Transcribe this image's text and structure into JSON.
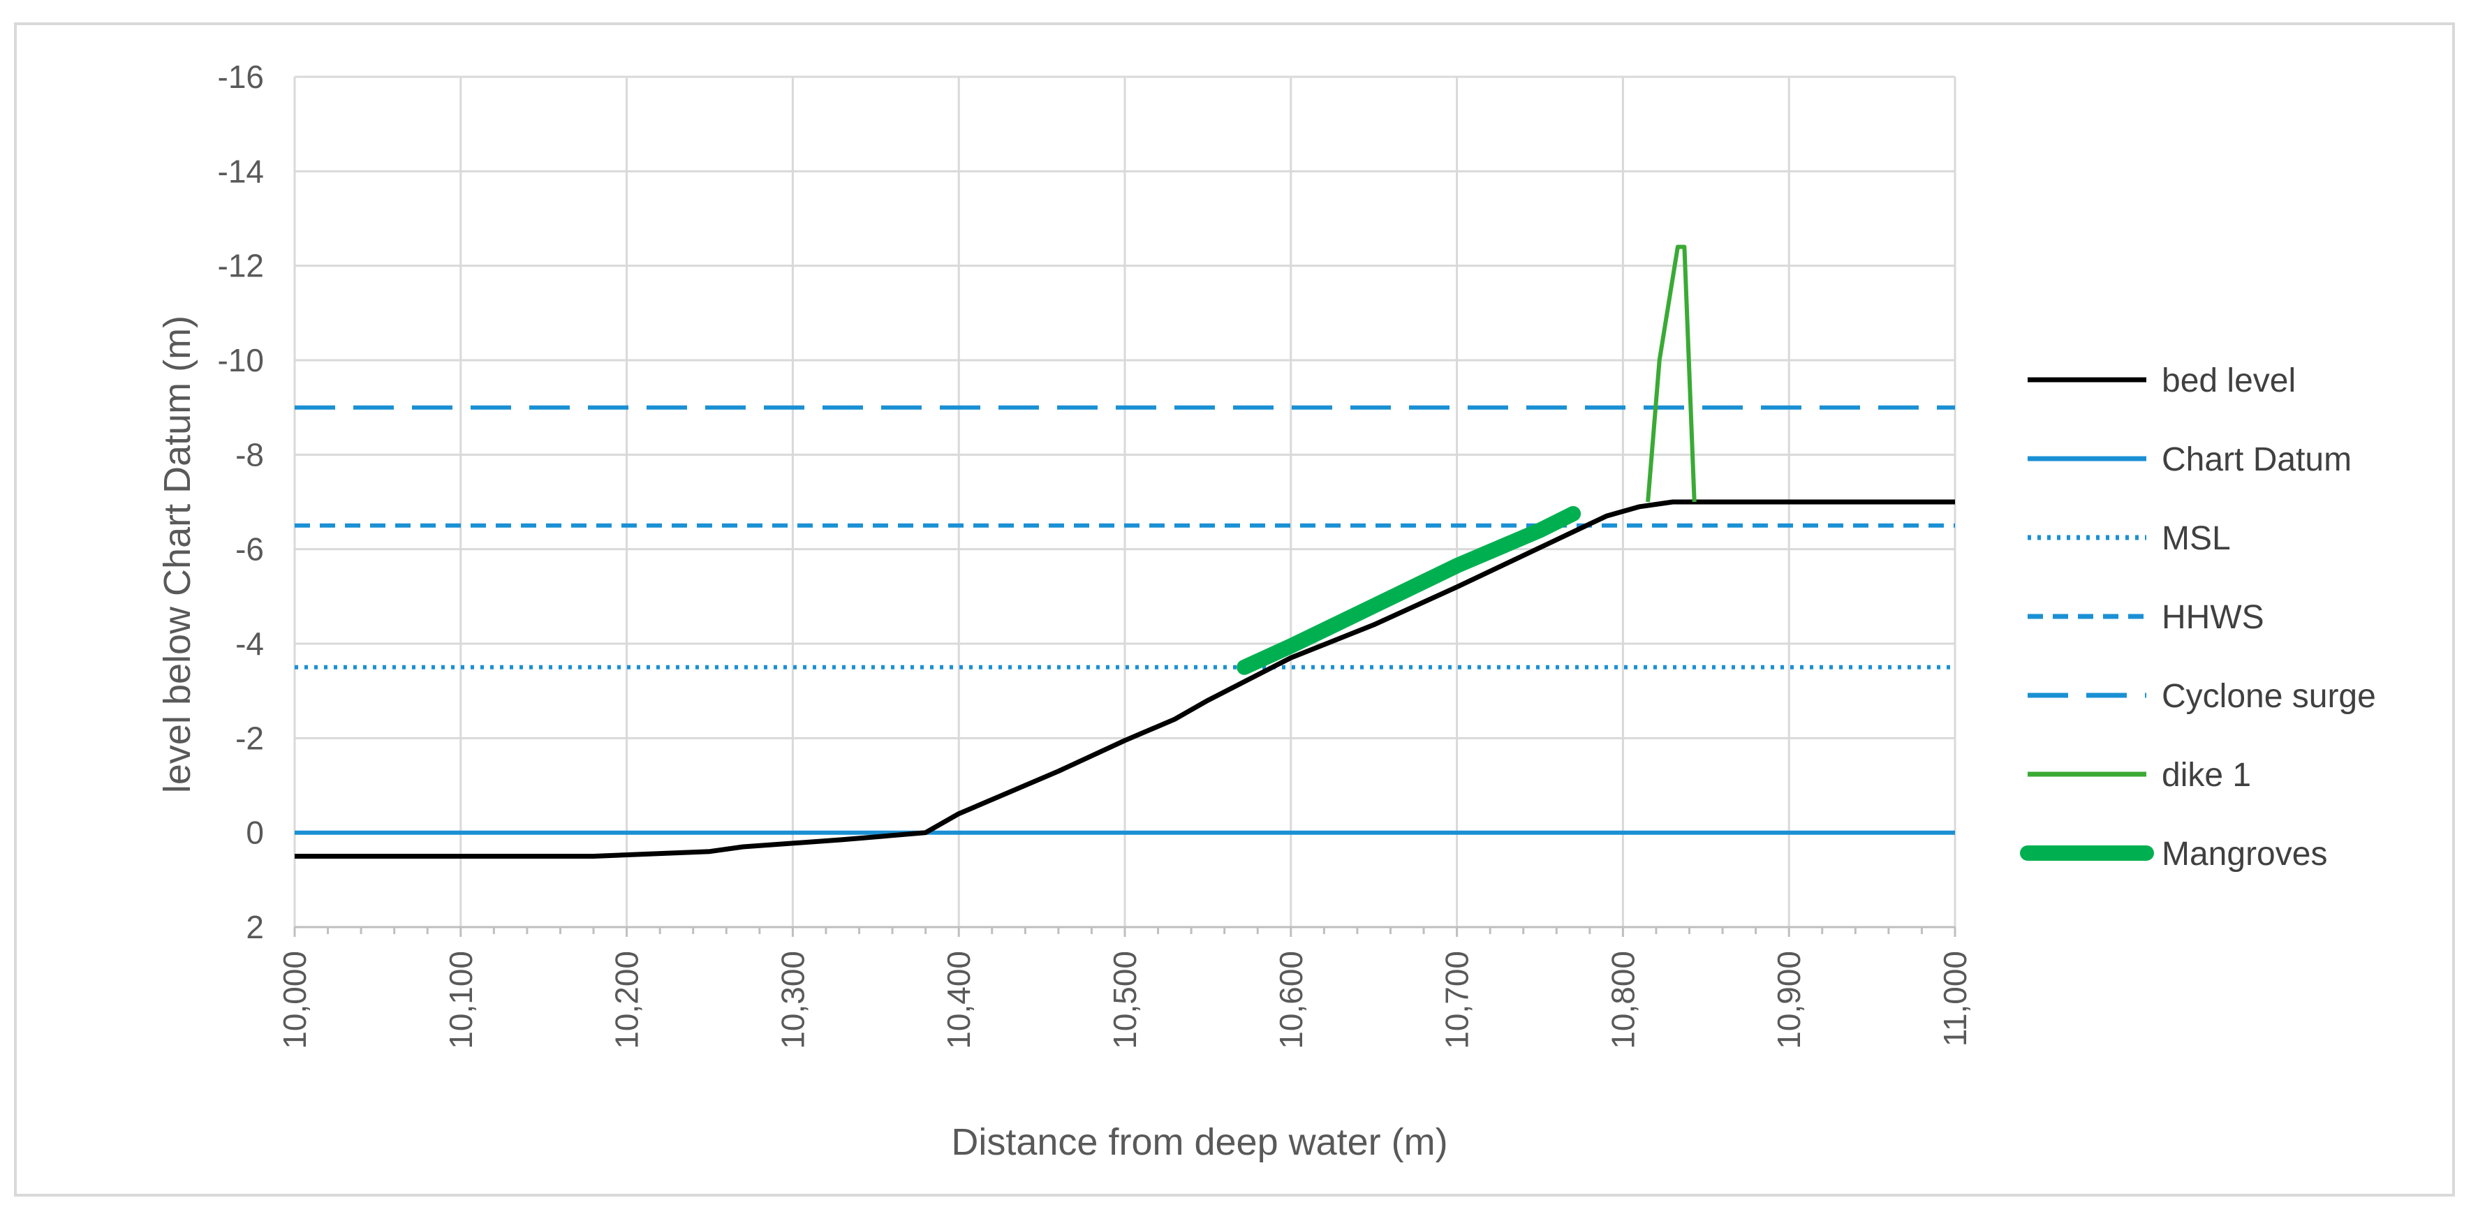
{
  "chart_data": {
    "type": "line",
    "title": "",
    "xlabel": "Distance from deep water (m)",
    "ylabel": "level below Chart Datum (m)",
    "xlim": [
      10000,
      11000
    ],
    "ylim": [
      2,
      -16
    ],
    "y_reversed": true,
    "grid": true,
    "legend_position": "right",
    "x_ticks": [
      {
        "value": 10000,
        "label": "10,000"
      },
      {
        "value": 10100,
        "label": "10,100"
      },
      {
        "value": 10200,
        "label": "10,200"
      },
      {
        "value": 10300,
        "label": "10,300"
      },
      {
        "value": 10400,
        "label": "10,400"
      },
      {
        "value": 10500,
        "label": "10,500"
      },
      {
        "value": 10600,
        "label": "10,600"
      },
      {
        "value": 10700,
        "label": "10,700"
      },
      {
        "value": 10800,
        "label": "10,800"
      },
      {
        "value": 10900,
        "label": "10,900"
      },
      {
        "value": 11000,
        "label": "11,000"
      }
    ],
    "y_ticks": [
      {
        "value": -16,
        "label": "-16"
      },
      {
        "value": -14,
        "label": "-14"
      },
      {
        "value": -12,
        "label": "-12"
      },
      {
        "value": -10,
        "label": "-10"
      },
      {
        "value": -8,
        "label": "-8"
      },
      {
        "value": -6,
        "label": "-6"
      },
      {
        "value": -4,
        "label": "-4"
      },
      {
        "value": -2,
        "label": "-2"
      },
      {
        "value": 0,
        "label": "0"
      },
      {
        "value": 2,
        "label": "2"
      }
    ],
    "series": [
      {
        "name": "bed level",
        "color": "#000000",
        "style": "solid",
        "width": "normal",
        "x": [
          10000,
          10180,
          10250,
          10270,
          10330,
          10380,
          10400,
          10460,
          10500,
          10530,
          10550,
          10600,
          10650,
          10700,
          10760,
          10790,
          10810,
          10830,
          11000
        ],
        "y": [
          0.5,
          0.5,
          0.4,
          0.3,
          0.15,
          0.0,
          -0.4,
          -1.3,
          -1.95,
          -2.4,
          -2.8,
          -3.7,
          -4.4,
          -5.2,
          -6.2,
          -6.7,
          -6.9,
          -7.0,
          -7.0
        ]
      },
      {
        "name": "Chart Datum",
        "color": "#1a90d4",
        "style": "solid",
        "width": "normal",
        "x": [
          10000,
          11000
        ],
        "y": [
          0,
          0
        ]
      },
      {
        "name": "MSL",
        "color": "#1a90d4",
        "style": "dotted",
        "width": "normal",
        "x": [
          10000,
          11000
        ],
        "y": [
          -3.5,
          -3.5
        ]
      },
      {
        "name": "HHWS",
        "color": "#1a90d4",
        "style": "dashed",
        "width": "normal",
        "x": [
          10000,
          11000
        ],
        "y": [
          -6.5,
          -6.5
        ]
      },
      {
        "name": "Cyclone surge",
        "color": "#1a90d4",
        "style": "long-dash",
        "width": "normal",
        "x": [
          10000,
          11000
        ],
        "y": [
          -9.0,
          -9.0
        ]
      },
      {
        "name": "dike 1",
        "color": "#3aaa35",
        "style": "solid",
        "width": "normal",
        "x": [
          10815,
          10822,
          10833,
          10837,
          10843
        ],
        "y": [
          -7.0,
          -10.0,
          -12.4,
          -12.4,
          -7.0
        ]
      },
      {
        "name": "Mangroves",
        "color": "#00b050",
        "style": "solid",
        "width": "thick",
        "x": [
          10572,
          10600,
          10650,
          10700,
          10750,
          10770
        ],
        "y": [
          -3.5,
          -3.95,
          -4.8,
          -5.65,
          -6.4,
          -6.75
        ]
      }
    ]
  }
}
